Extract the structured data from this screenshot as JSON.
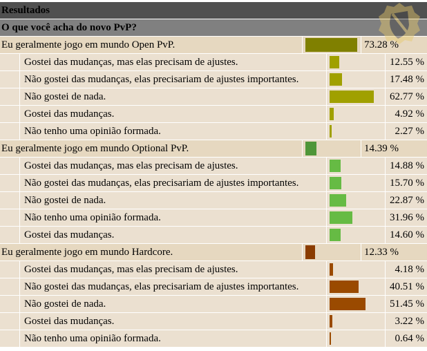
{
  "header": {
    "title": "Resultados"
  },
  "question": "O que você acha do novo PvP?",
  "groups": [
    {
      "label": "Eu geralmente jogo em mundo Open PvP.",
      "percent": 73.28,
      "percent_text": "73.28 %",
      "color": "#808000",
      "sub_color": "#a0a000",
      "answers": [
        {
          "label": "Gostei das mudanças, mas elas precisam de ajustes.",
          "percent": 12.55,
          "percent_text": "12.55 %"
        },
        {
          "label": "Não gostei das mudanças, elas precisariam de ajustes importantes.",
          "percent": 17.48,
          "percent_text": "17.48 %"
        },
        {
          "label": "Não gostei de nada.",
          "percent": 62.77,
          "percent_text": "62.77 %"
        },
        {
          "label": "Gostei das mudanças.",
          "percent": 4.92,
          "percent_text": "4.92 %"
        },
        {
          "label": "Não tenho uma opinião formada.",
          "percent": 2.27,
          "percent_text": "2.27 %"
        }
      ]
    },
    {
      "label": "Eu geralmente jogo em mundo Optional PvP.",
      "percent": 14.39,
      "percent_text": "14.39 %",
      "color": "#4f9638",
      "sub_color": "#66bb44",
      "answers": [
        {
          "label": "Gostei das mudanças, mas elas precisam de ajustes.",
          "percent": 14.88,
          "percent_text": "14.88 %"
        },
        {
          "label": "Não gostei das mudanças, elas precisariam de ajustes importantes.",
          "percent": 15.7,
          "percent_text": "15.70 %"
        },
        {
          "label": "Não gostei de nada.",
          "percent": 22.87,
          "percent_text": "22.87 %"
        },
        {
          "label": "Não tenho uma opinião formada.",
          "percent": 31.96,
          "percent_text": "31.96 %"
        },
        {
          "label": "Gostei das mudanças.",
          "percent": 14.6,
          "percent_text": "14.60 %"
        }
      ]
    },
    {
      "label": "Eu geralmente jogo em mundo Hardcore.",
      "percent": 12.33,
      "percent_text": "12.33 %",
      "color": "#8a3c00",
      "sub_color": "#9a4a00",
      "answers": [
        {
          "label": "Gostei das mudanças, mas elas precisam de ajustes.",
          "percent": 4.18,
          "percent_text": "4.18 %"
        },
        {
          "label": "Não gostei das mudanças, elas precisariam de ajustes importantes.",
          "percent": 40.51,
          "percent_text": "40.51 %"
        },
        {
          "label": "Não gostei de nada.",
          "percent": 51.45,
          "percent_text": "51.45 %"
        },
        {
          "label": "Gostei das mudanças.",
          "percent": 3.22,
          "percent_text": "3.22 %"
        },
        {
          "label": "Não tenho uma opinião formada.",
          "percent": 0.64,
          "percent_text": "0.64 %"
        }
      ]
    }
  ]
}
